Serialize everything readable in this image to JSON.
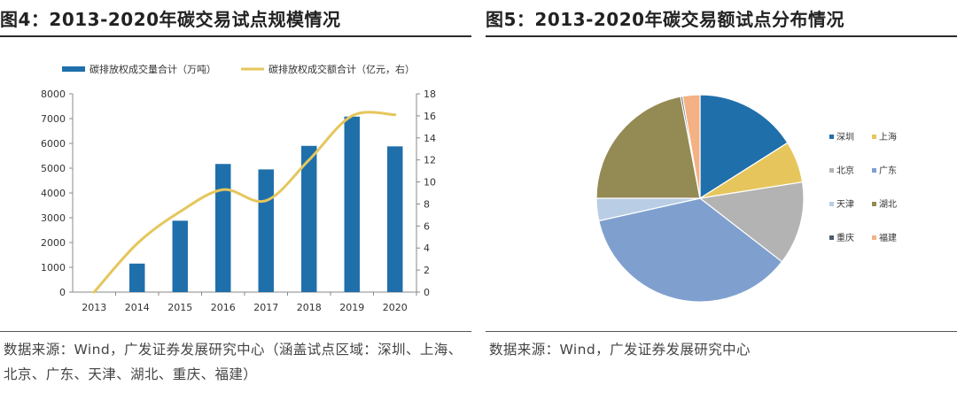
{
  "figures": [
    {
      "title": "图4：2013-2020年碳交易试点规模情况",
      "source": "数据来源：Wind，广发证券发展研究中心（涵盖试点区域：深圳、上海、北京、广东、天津、湖北、重庆、福建）"
    },
    {
      "title": "图5：2013-2020年碳交易额试点分布情况",
      "source": "数据来源：Wind，广发证券发展研究中心"
    }
  ],
  "chart_data": [
    {
      "type": "bar",
      "title": "2013-2020年碳交易试点规模情况",
      "categories": [
        "2013",
        "2014",
        "2015",
        "2016",
        "2017",
        "2018",
        "2019",
        "2020"
      ],
      "series": [
        {
          "name": "碳排放权成交量合计（万吨）",
          "type": "bar",
          "axis": "left",
          "color": "#1f6fab",
          "values": [
            0,
            1150,
            2880,
            5170,
            4950,
            5900,
            7080,
            5880
          ]
        },
        {
          "name": "碳排放权成交额合计（亿元，右）",
          "type": "line",
          "axis": "right",
          "color": "#e6c65c",
          "values": [
            0,
            4.4,
            7.3,
            9.3,
            8.3,
            12.0,
            16.0,
            16.1
          ]
        }
      ],
      "y_left": {
        "range": [
          0,
          8000
        ],
        "ticks": [
          0,
          1000,
          2000,
          3000,
          4000,
          5000,
          6000,
          7000,
          8000
        ]
      },
      "y_right": {
        "range": [
          0,
          18
        ],
        "ticks": [
          0,
          2,
          4,
          6,
          8,
          10,
          12,
          14,
          16,
          18
        ]
      },
      "legend": "top",
      "grid": false
    },
    {
      "type": "pie",
      "title": "2013-2020年碳交易额试点分布情况",
      "slices": [
        {
          "label": "深圳",
          "value": 16,
          "color": "#1f6fab"
        },
        {
          "label": "上海",
          "value": 6.5,
          "color": "#e6c65c"
        },
        {
          "label": "北京",
          "value": 13,
          "color": "#b3b3b3"
        },
        {
          "label": "广东",
          "value": 36,
          "color": "#7fa0cf"
        },
        {
          "label": "天津",
          "value": 3.5,
          "color": "#b9cde5"
        },
        {
          "label": "湖北",
          "value": 22,
          "color": "#948a54"
        },
        {
          "label": "重庆",
          "value": 0.3,
          "color": "#4d5b6b"
        },
        {
          "label": "福建",
          "value": 2.7,
          "color": "#f4b183"
        }
      ],
      "legend": "right"
    }
  ]
}
